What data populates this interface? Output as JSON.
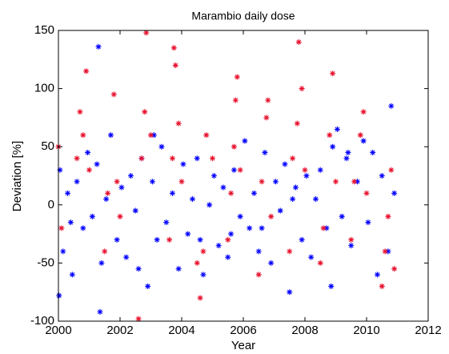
{
  "chart_data": {
    "type": "scatter",
    "title": "Marambio daily dose",
    "xlabel": "Year",
    "ylabel": "Deviation [%]",
    "xlim": [
      2000,
      2012
    ],
    "xticks": [
      2000,
      2002,
      2004,
      2006,
      2008,
      2010,
      2012
    ],
    "ylim": [
      -100,
      150
    ],
    "yticks": [
      -100,
      -50,
      0,
      50,
      100,
      150
    ],
    "grid": false,
    "series": [
      {
        "color": "#0000ff",
        "x": [
          2000.05,
          2000.15,
          2000.3,
          2000.45,
          2000.6,
          2000.8,
          2000.95,
          2001.1,
          2001.25,
          2001.4,
          2001.55,
          2001.7,
          2001.9,
          2002.05,
          2002.2,
          2002.35,
          2002.5,
          2002.7,
          2002.9,
          2003.05,
          2003.2,
          2003.35,
          2003.5,
          2003.7,
          2003.9,
          2004.05,
          2004.2,
          2004.35,
          2004.5,
          2004.7,
          2004.9,
          2005.05,
          2005.2,
          2005.35,
          2005.5,
          2005.7,
          2005.9,
          2006.05,
          2006.2,
          2006.35,
          2006.5,
          2006.7,
          2006.9,
          2007.05,
          2007.2,
          2007.35,
          2007.5,
          2007.7,
          2007.9,
          2008.05,
          2008.2,
          2008.35,
          2008.5,
          2008.7,
          2008.9,
          2009.05,
          2009.2,
          2009.35,
          2009.5,
          2009.7,
          2009.9,
          2010.05,
          2010.2,
          2010.35,
          2010.5,
          2010.7,
          2010.9,
          2001.3,
          2001.35,
          2000.02,
          2010.8,
          2008.85,
          2004.6,
          2003.1,
          2006.6,
          2009.4,
          2002.6,
          2000.4,
          2007.6,
          2005.6
        ],
        "values": [
          30,
          -40,
          10,
          -60,
          20,
          -20,
          45,
          -10,
          35,
          -50,
          5,
          60,
          -30,
          15,
          -45,
          25,
          -5,
          40,
          -70,
          20,
          -30,
          50,
          -15,
          10,
          -55,
          35,
          -25,
          5,
          40,
          -60,
          0,
          25,
          -35,
          15,
          -45,
          30,
          -10,
          55,
          -20,
          10,
          -40,
          45,
          -50,
          20,
          -5,
          35,
          -75,
          15,
          -30,
          25,
          -45,
          5,
          30,
          -20,
          50,
          65,
          -10,
          40,
          -35,
          20,
          55,
          -15,
          45,
          -60,
          25,
          -40,
          10,
          136,
          -92,
          -78,
          85,
          -70,
          -30,
          60,
          -20,
          45,
          -55,
          -15,
          5,
          -25
        ]
      },
      {
        "color": "#e8102c",
        "x": [
          2000.0,
          2000.1,
          2000.6,
          2000.7,
          2000.8,
          2000.9,
          2001.0,
          2001.5,
          2001.6,
          2001.8,
          2001.9,
          2002.0,
          2002.6,
          2002.7,
          2002.8,
          2002.85,
          2003.0,
          2003.6,
          2003.7,
          2003.75,
          2003.8,
          2003.9,
          2004.0,
          2004.5,
          2004.6,
          2004.7,
          2004.8,
          2005.0,
          2005.5,
          2005.6,
          2005.7,
          2005.75,
          2005.8,
          2005.9,
          2006.5,
          2006.6,
          2006.75,
          2006.8,
          2006.9,
          2007.5,
          2007.6,
          2007.75,
          2007.8,
          2007.9,
          2008.0,
          2008.5,
          2008.6,
          2008.8,
          2008.9,
          2009.0,
          2009.5,
          2009.6,
          2009.8,
          2009.9,
          2010.0,
          2010.5,
          2010.6,
          2010.7,
          2010.8,
          2010.9
        ],
        "values": [
          50,
          -20,
          40,
          80,
          60,
          115,
          30,
          -40,
          10,
          95,
          20,
          -10,
          -98,
          40,
          80,
          148,
          60,
          -30,
          40,
          135,
          120,
          70,
          20,
          -50,
          -80,
          -40,
          60,
          40,
          -30,
          10,
          50,
          90,
          110,
          30,
          -60,
          20,
          75,
          90,
          -10,
          -40,
          40,
          70,
          140,
          100,
          30,
          -50,
          -20,
          60,
          113,
          20,
          -30,
          20,
          60,
          80,
          10,
          -70,
          -40,
          -10,
          30,
          -55
        ]
      }
    ]
  }
}
